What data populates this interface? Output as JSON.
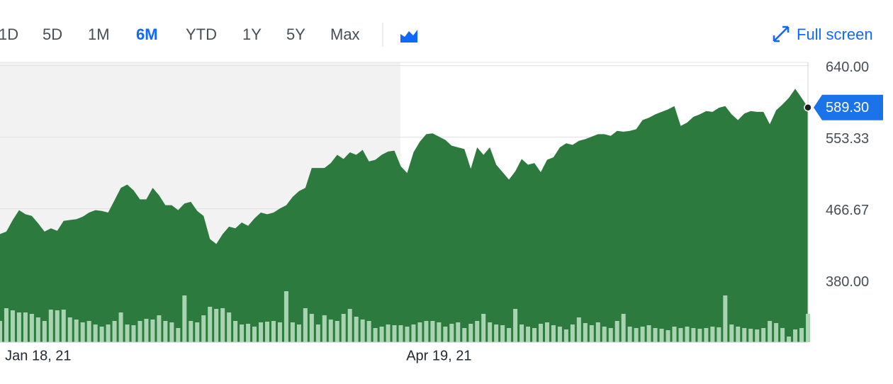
{
  "toolbar": {
    "ranges": [
      "1D",
      "5D",
      "1M",
      "6M",
      "YTD",
      "1Y",
      "5Y",
      "Max"
    ],
    "selected_range": 3,
    "full_screen": "Full screen"
  },
  "chart_data": {
    "type": "area",
    "categories": [
      null,
      null,
      null,
      null,
      null,
      null,
      "Jan 18, 21",
      null,
      null,
      null,
      null,
      null,
      null,
      null,
      null,
      null,
      null,
      null,
      null,
      null,
      null,
      null,
      null,
      null,
      null,
      null,
      null,
      null,
      null,
      null,
      null,
      null,
      null,
      null,
      null,
      null,
      null,
      null,
      null,
      null,
      null,
      null,
      null,
      null,
      null,
      null,
      null,
      null,
      null,
      null,
      null,
      null,
      null,
      null,
      null,
      null,
      null,
      null,
      null,
      null,
      null,
      null,
      null,
      null,
      null,
      null,
      null,
      null,
      null,
      "Apr 19, 21",
      null,
      null,
      null,
      null,
      null,
      null,
      null,
      null,
      null,
      null,
      null,
      null,
      null,
      null,
      null,
      null,
      null,
      null,
      null,
      null,
      null,
      null,
      null,
      null,
      null,
      null,
      null,
      null,
      null,
      null,
      null,
      null,
      null,
      null,
      null,
      null,
      null,
      null,
      null,
      null,
      null,
      null,
      null,
      null,
      null,
      null,
      null,
      null,
      null,
      null,
      null,
      null,
      null,
      null,
      null,
      null,
      null,
      null
    ],
    "series": [
      {
        "color": "#2d7a3e",
        "values": [
          436,
          439,
          453,
          465,
          460,
          458,
          449,
          439,
          443,
          440,
          452,
          453,
          454,
          457,
          462,
          465,
          464,
          462,
          477,
          492,
          496,
          489,
          478,
          478,
          492,
          483,
          471,
          471,
          465,
          473,
          475,
          464,
          458,
          430,
          424,
          436,
          445,
          443,
          450,
          446,
          455,
          462,
          460,
          462,
          467,
          471,
          481,
          488,
          492,
          516,
          516,
          516,
          522,
          532,
          527,
          535,
          532,
          538,
          524,
          526,
          532,
          536,
          537,
          518,
          510,
          535,
          548,
          557,
          558,
          554,
          550,
          543,
          541,
          539,
          515,
          541,
          532,
          541,
          520,
          511,
          502,
          512,
          527,
          520,
          522,
          511,
          526,
          529,
          541,
          546,
          544,
          549,
          551,
          554,
          557,
          557,
          555,
          561,
          560,
          561,
          563,
          574,
          577,
          581,
          584,
          587,
          591,
          567,
          571,
          578,
          581,
          585,
          584,
          589,
          591,
          581,
          574,
          582,
          585,
          584,
          584,
          569,
          586,
          593,
          601,
          612,
          601,
          589.3
        ]
      }
    ],
    "volume": {
      "color": "#a9d4b2",
      "ylim": [
        0,
        100
      ],
      "values": [
        30,
        48,
        45,
        42,
        42,
        40,
        35,
        30,
        46,
        45,
        46,
        35,
        32,
        28,
        30,
        25,
        22,
        25,
        30,
        42,
        25,
        24,
        30,
        33,
        32,
        38,
        30,
        28,
        20,
        66,
        30,
        28,
        38,
        50,
        47,
        48,
        42,
        30,
        25,
        26,
        22,
        28,
        29,
        30,
        28,
        72,
        28,
        25,
        48,
        40,
        25,
        38,
        32,
        30,
        40,
        47,
        36,
        32,
        30,
        20,
        22,
        25,
        24,
        24,
        22,
        25,
        28,
        30,
        30,
        28,
        22,
        26,
        28,
        20,
        26,
        30,
        40,
        28,
        25,
        24,
        20,
        47,
        25,
        22,
        20,
        26,
        28,
        24,
        22,
        18,
        25,
        35,
        27,
        24,
        28,
        22,
        20,
        30,
        40,
        22,
        20,
        22,
        24,
        20,
        19,
        17,
        22,
        20,
        22,
        20,
        19,
        20,
        22,
        21,
        66,
        25,
        22,
        20,
        19,
        18,
        20,
        30,
        27,
        20,
        8,
        18,
        20,
        40
      ]
    },
    "current": {
      "value": 589.3,
      "label": "589.30",
      "color": "#1a73e8"
    },
    "ylim": [
      305,
      644
    ],
    "yticks": [
      {
        "value": 640,
        "label": "640.00"
      },
      553.33,
      466.67,
      {
        "value": 380,
        "label": "380.00"
      }
    ],
    "grid": true
  }
}
